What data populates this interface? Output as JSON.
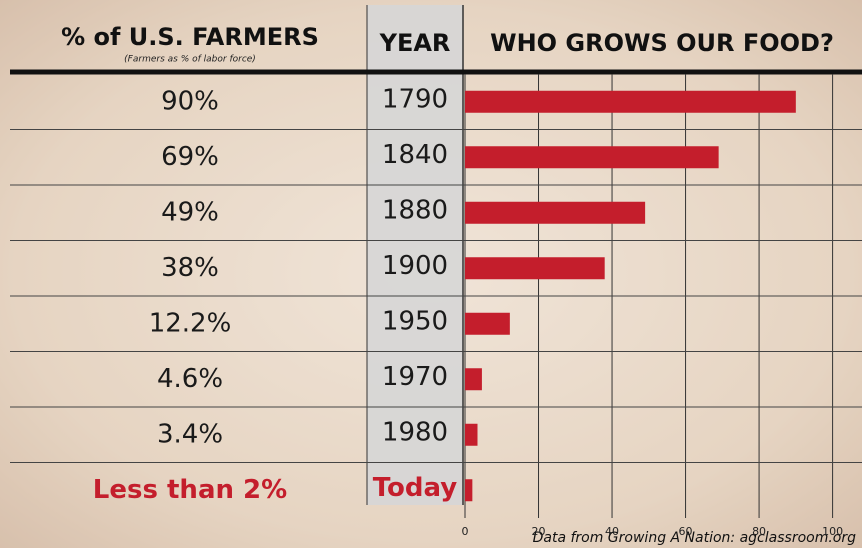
{
  "chart_data": {
    "type": "bar",
    "title": "WHO GROWS OUR FOOD?",
    "left_header": "% of U.S. FARMERS",
    "left_subheader": "(Farmers as % of labor force)",
    "category_header": "YEAR",
    "categories": [
      "1790",
      "1840",
      "1880",
      "1900",
      "1950",
      "1970",
      "1980",
      "Today"
    ],
    "values": [
      90,
      69,
      49,
      38,
      12.2,
      4.6,
      3.4,
      2
    ],
    "value_labels": [
      "90%",
      "69%",
      "49%",
      "38%",
      "12.2%",
      "4.6%",
      "3.4%",
      "Less than 2%"
    ],
    "color": "#c41e2c",
    "xlim": [
      0,
      108
    ],
    "xticks": [
      0,
      20,
      40,
      60,
      80,
      100
    ],
    "grid": true,
    "source": "Data from Growing A Nation: agclassroom.org"
  }
}
